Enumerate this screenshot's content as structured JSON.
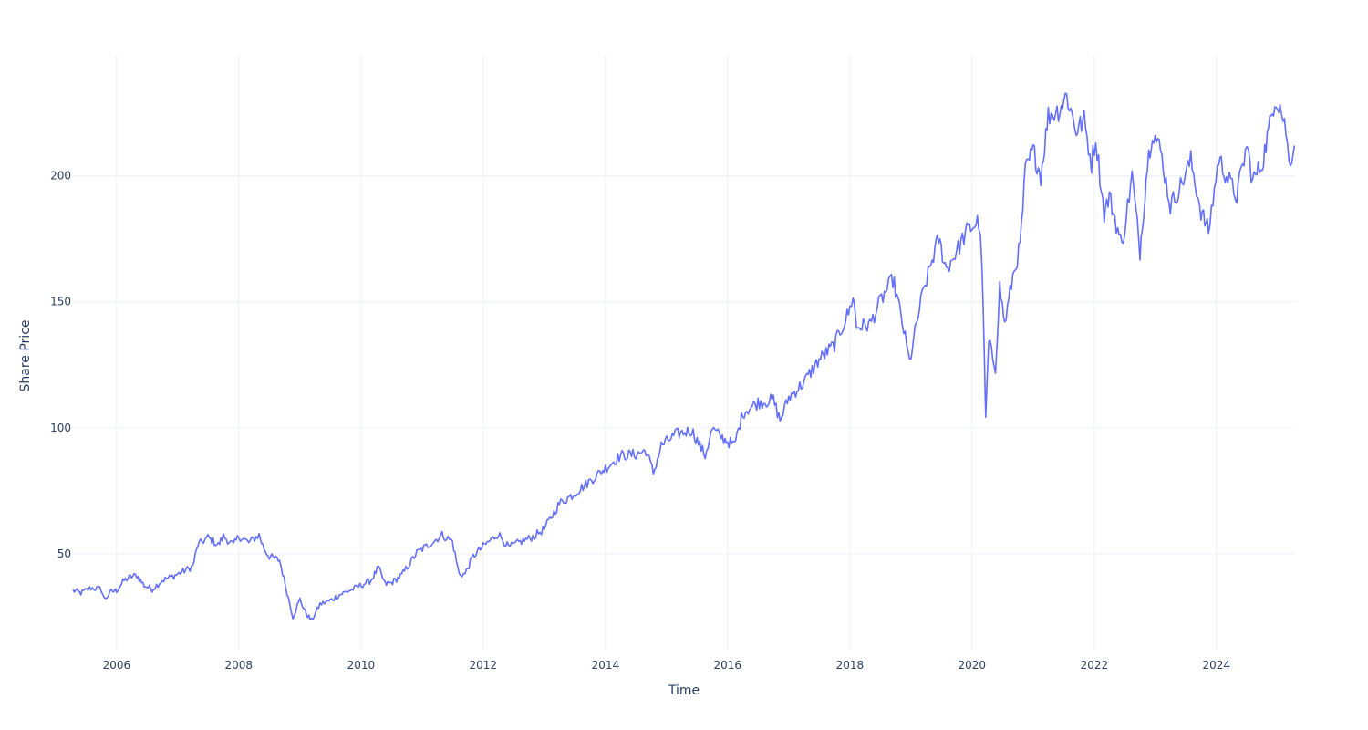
{
  "chart_data": {
    "type": "line",
    "title": "",
    "xlabel": "Time",
    "ylabel": "Share Price",
    "x_range": [
      "2005-04-15",
      "2025-04-15"
    ],
    "ylim": [
      12,
      248
    ],
    "x_tick_labels": [
      "2006",
      "2008",
      "2010",
      "2012",
      "2014",
      "2016",
      "2018",
      "2020",
      "2022",
      "2024"
    ],
    "y_tick_values": [
      50,
      100,
      150,
      200
    ],
    "grid": true,
    "legend": "none",
    "line_color": "#636efa",
    "grid_color": "#ebf0f8",
    "text_color": "#2a3f5f",
    "series": [
      {
        "points": [
          [
            "2005-04-15",
            35.5
          ],
          [
            "2005-06-01",
            34.5
          ],
          [
            "2005-08-01",
            36.5
          ],
          [
            "2005-10-01",
            36.0
          ],
          [
            "2005-10-20",
            32.0
          ],
          [
            "2005-12-01",
            35.0
          ],
          [
            "2006-01-01",
            35.5
          ],
          [
            "2006-02-15",
            39.5
          ],
          [
            "2006-04-01",
            41.0
          ],
          [
            "2006-05-01",
            41.5
          ],
          [
            "2006-06-15",
            37.5
          ],
          [
            "2006-08-01",
            36.0
          ],
          [
            "2006-10-01",
            39.5
          ],
          [
            "2006-12-01",
            41.0
          ],
          [
            "2007-02-01",
            43.0
          ],
          [
            "2007-04-01",
            45.0
          ],
          [
            "2007-05-01",
            53.5
          ],
          [
            "2007-07-01",
            56.5
          ],
          [
            "2007-09-01",
            53.5
          ],
          [
            "2007-10-01",
            57.0
          ],
          [
            "2007-12-01",
            53.5
          ],
          [
            "2008-01-01",
            57.0
          ],
          [
            "2008-03-01",
            54.5
          ],
          [
            "2008-05-01",
            57.5
          ],
          [
            "2008-06-01",
            52.0
          ],
          [
            "2008-07-01",
            49.0
          ],
          [
            "2008-09-01",
            47.5
          ],
          [
            "2008-10-15",
            35.0
          ],
          [
            "2008-11-20",
            25.0
          ],
          [
            "2009-01-01",
            32.0
          ],
          [
            "2009-02-01",
            27.0
          ],
          [
            "2009-03-10",
            23.5
          ],
          [
            "2009-05-01",
            30.0
          ],
          [
            "2009-07-01",
            31.5
          ],
          [
            "2009-09-01",
            34.0
          ],
          [
            "2009-12-01",
            36.5
          ],
          [
            "2010-03-01",
            39.5
          ],
          [
            "2010-04-15",
            44.5
          ],
          [
            "2010-05-25",
            38.0
          ],
          [
            "2010-07-01",
            38.5
          ],
          [
            "2010-09-01",
            41.5
          ],
          [
            "2010-12-01",
            50.5
          ],
          [
            "2011-03-01",
            54.5
          ],
          [
            "2011-05-01",
            57.5
          ],
          [
            "2011-07-01",
            55.0
          ],
          [
            "2011-08-10",
            42.0
          ],
          [
            "2011-09-15",
            42.0
          ],
          [
            "2011-11-01",
            49.0
          ],
          [
            "2012-01-01",
            53.0
          ],
          [
            "2012-04-01",
            58.0
          ],
          [
            "2012-06-01",
            52.5
          ],
          [
            "2012-08-01",
            54.5
          ],
          [
            "2012-11-01",
            57.0
          ],
          [
            "2013-01-01",
            60.0
          ],
          [
            "2013-04-01",
            70.0
          ],
          [
            "2013-07-01",
            74.0
          ],
          [
            "2013-10-01",
            79.0
          ],
          [
            "2014-01-01",
            84.0
          ],
          [
            "2014-04-01",
            89.0
          ],
          [
            "2014-07-01",
            89.5
          ],
          [
            "2014-09-01",
            91.0
          ],
          [
            "2014-10-15",
            82.0
          ],
          [
            "2014-12-01",
            93.0
          ],
          [
            "2015-03-01",
            97.5
          ],
          [
            "2015-06-01",
            99.0
          ],
          [
            "2015-08-20",
            89.0
          ],
          [
            "2015-10-01",
            99.5
          ],
          [
            "2015-12-01",
            96.0
          ],
          [
            "2016-02-10",
            93.0
          ],
          [
            "2016-04-01",
            106.0
          ],
          [
            "2016-07-01",
            110.0
          ],
          [
            "2016-10-01",
            111.0
          ],
          [
            "2016-11-10",
            103.0
          ],
          [
            "2017-01-01",
            112.0
          ],
          [
            "2017-04-01",
            118.0
          ],
          [
            "2017-07-01",
            127.0
          ],
          [
            "2017-10-01",
            133.0
          ],
          [
            "2018-01-01",
            147.0
          ],
          [
            "2018-01-20",
            153.0
          ],
          [
            "2018-02-10",
            140.0
          ],
          [
            "2018-05-01",
            141.0
          ],
          [
            "2018-07-01",
            150.0
          ],
          [
            "2018-09-15",
            159.0
          ],
          [
            "2018-11-01",
            145.0
          ],
          [
            "2018-12-24",
            126.0
          ],
          [
            "2019-03-01",
            150.0
          ],
          [
            "2019-05-01",
            165.0
          ],
          [
            "2019-06-15",
            175.0
          ],
          [
            "2019-08-01",
            163.0
          ],
          [
            "2019-10-01",
            170.0
          ],
          [
            "2019-12-01",
            178.0
          ],
          [
            "2020-02-10",
            182.0
          ],
          [
            "2020-03-01",
            165.0
          ],
          [
            "2020-03-23",
            104.0
          ],
          [
            "2020-04-10",
            134.0
          ],
          [
            "2020-05-20",
            124.0
          ],
          [
            "2020-06-15",
            156.0
          ],
          [
            "2020-07-15",
            141.0
          ],
          [
            "2020-09-01",
            160.0
          ],
          [
            "2020-10-15",
            172.0
          ],
          [
            "2020-11-15",
            202.0
          ],
          [
            "2021-01-01",
            210.0
          ],
          [
            "2021-02-15",
            200.0
          ],
          [
            "2021-04-01",
            224.0
          ],
          [
            "2021-06-01",
            226.0
          ],
          [
            "2021-07-20",
            232.0
          ],
          [
            "2021-09-15",
            218.0
          ],
          [
            "2021-11-01",
            222.0
          ],
          [
            "2021-12-15",
            205.0
          ],
          [
            "2022-01-10",
            215.0
          ],
          [
            "2022-03-01",
            185.0
          ],
          [
            "2022-04-01",
            192.0
          ],
          [
            "2022-06-15",
            172.0
          ],
          [
            "2022-08-15",
            200.0
          ],
          [
            "2022-10-01",
            170.0
          ],
          [
            "2022-11-15",
            205.0
          ],
          [
            "2022-12-15",
            218.0
          ],
          [
            "2023-02-01",
            210.0
          ],
          [
            "2023-04-01",
            188.0
          ],
          [
            "2023-06-01",
            196.0
          ],
          [
            "2023-08-01",
            206.0
          ],
          [
            "2023-10-01",
            186.0
          ],
          [
            "2023-11-15",
            178.0
          ],
          [
            "2024-01-15",
            207.0
          ],
          [
            "2024-03-01",
            200.0
          ],
          [
            "2024-05-01",
            192.0
          ],
          [
            "2024-07-01",
            212.0
          ],
          [
            "2024-08-05",
            198.0
          ],
          [
            "2024-10-01",
            205.0
          ],
          [
            "2024-11-15",
            220.0
          ],
          [
            "2024-12-15",
            231.0
          ],
          [
            "2025-01-15",
            228.0
          ],
          [
            "2025-02-20",
            218.0
          ],
          [
            "2025-03-10",
            205.0
          ],
          [
            "2025-04-11",
            212.0
          ]
        ]
      }
    ]
  }
}
